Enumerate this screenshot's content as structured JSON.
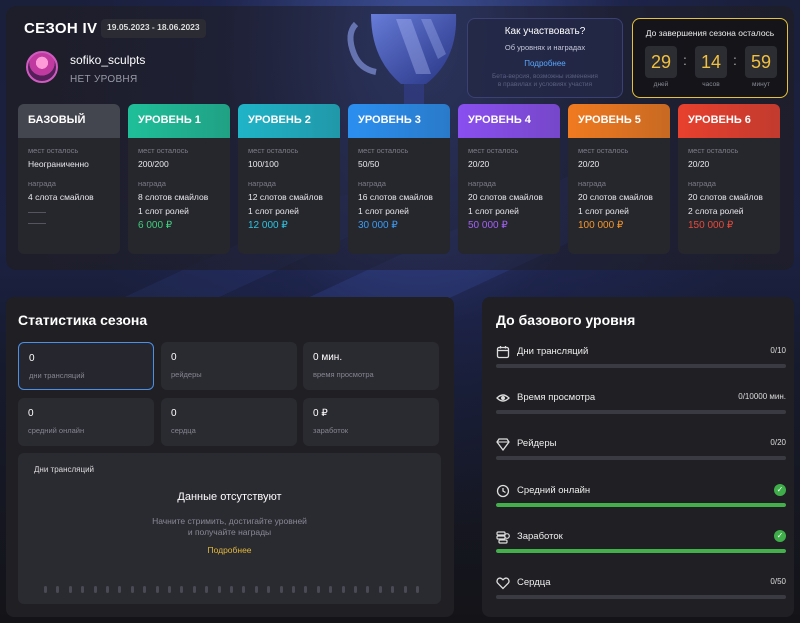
{
  "header": {
    "season": "СЕЗОН IV",
    "dates": "19.05.2023 - 18.06.2023",
    "user_name": "sofiko_sculpts",
    "user_level": "НЕТ УРОВНЯ"
  },
  "how_to": {
    "title": "Как участвовать?",
    "subtitle": "Об уровнях и наградах",
    "link": "Подробнее",
    "note_line1": "Бета-версия, возможны изменения",
    "note_line2": "в правилах и условиях участия"
  },
  "timer": {
    "title": "До завершения сезона осталось",
    "days": "29",
    "hours": "14",
    "minutes": "59",
    "days_label": "дней",
    "hours_label": "часов",
    "minutes_label": "минут"
  },
  "card_labels": {
    "places": "мест осталось",
    "reward": "награда"
  },
  "levels": [
    {
      "name": "БАЗОВЫЙ",
      "places": "Неограниченно",
      "reward1": "4 слота смайлов",
      "reward2": "",
      "price": "",
      "color": "#44464f",
      "price_color": "#e8e8ee"
    },
    {
      "name": "УРОВЕНЬ 1",
      "places": "200/200",
      "reward1": "8 слотов смайлов",
      "reward2": "1 слот ролей",
      "price": "6 000 ₽",
      "color": "#1fbf9a",
      "price_color": "#3fd07c"
    },
    {
      "name": "УРОВЕНЬ 2",
      "places": "100/100",
      "reward1": "12 слотов смайлов",
      "reward2": "1 слот ролей",
      "price": "12 000 ₽",
      "color": "#1fb4c8",
      "price_color": "#2ec4e0"
    },
    {
      "name": "УРОВЕНЬ 3",
      "places": "50/50",
      "reward1": "16 слотов смайлов",
      "reward2": "1 слот ролей",
      "price": "30 000 ₽",
      "color": "#2b8ff0",
      "price_color": "#3b9cf5"
    },
    {
      "name": "УРОВЕНЬ 4",
      "places": "20/20",
      "reward1": "20 слотов смайлов",
      "reward2": "1 слот ролей",
      "price": "50 000 ₽",
      "color": "#8a4ff0",
      "price_color": "#a162f5"
    },
    {
      "name": "УРОВЕНЬ 5",
      "places": "20/20",
      "reward1": "20 слотов смайлов",
      "reward2": "1 слот ролей",
      "price": "100 000 ₽",
      "color": "#f07a20",
      "price_color": "#f5962a"
    },
    {
      "name": "УРОВЕНЬ 6",
      "places": "20/20",
      "reward1": "20 слотов смайлов",
      "reward2": "2 слота ролей",
      "price": "150 000 ₽",
      "color": "#e8402e",
      "price_color": "#e84a3a"
    }
  ],
  "stats": {
    "title": "Статистика сезона",
    "cards": [
      {
        "value": "0",
        "label": "дни трансляций"
      },
      {
        "value": "0",
        "label": "рейдеры"
      },
      {
        "value": "0 мин.",
        "label": "время просмотра"
      },
      {
        "value": "0",
        "label": "средний онлайн"
      },
      {
        "value": "0",
        "label": "сердца"
      },
      {
        "value": "0 ₽",
        "label": "заработок"
      }
    ],
    "chart_title": "Дни трансляций",
    "empty_title": "Данные отсутствуют",
    "empty_sub1": "Начните стримить, достигайте уровней",
    "empty_sub2": "и получайте награды",
    "empty_link": "Подробнее"
  },
  "progress": {
    "title": "До базового уровня",
    "rows": [
      {
        "label": "Дни трансляций",
        "value": "0/10",
        "done": false,
        "fraction": 0,
        "icon": "calendar-icon"
      },
      {
        "label": "Время просмотра",
        "value": "0/10000 мин.",
        "done": false,
        "fraction": 0,
        "icon": "eye-icon"
      },
      {
        "label": "Рейдеры",
        "value": "0/20",
        "done": false,
        "fraction": 0,
        "icon": "diamond-icon"
      },
      {
        "label": "Средний онлайн",
        "value": "",
        "done": true,
        "fraction": 1,
        "icon": "clock-icon"
      },
      {
        "label": "Заработок",
        "value": "",
        "done": true,
        "fraction": 1,
        "icon": "coins-icon"
      },
      {
        "label": "Сердца",
        "value": "0/50",
        "done": false,
        "fraction": 0,
        "icon": "heart-icon"
      }
    ]
  }
}
